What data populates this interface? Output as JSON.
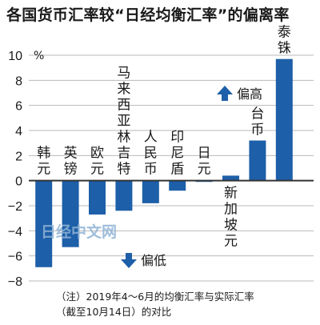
{
  "title": "各国货币汇率较“日经均衡汇率”的偏离率",
  "footnote": [
    "（注）2019年4～6月的均衡汇率与实际汇率",
    "（截至10月14日）的对比"
  ],
  "watermark": "日经中文网",
  "colors": {
    "bar": "#1d5fa8",
    "grid": "#b9b9b9",
    "axis": "#333333",
    "watermark": "#8fb3d6"
  },
  "chart_data": {
    "type": "bar",
    "title": "各国货币汇率较“日经均衡汇率”的偏离率",
    "unit": "%",
    "ylim": [
      -8,
      10
    ],
    "yticks": [
      10,
      8,
      6,
      4,
      2,
      0,
      -2,
      -4,
      -6,
      -8
    ],
    "grid": true,
    "categories": [
      "韩元",
      "英镑",
      "欧元",
      "马来西亚林吉特",
      "人民币",
      "印尼盾",
      "日元",
      "新加坡元",
      "台币",
      "泰铢"
    ],
    "values": [
      -6.9,
      -5.3,
      -2.7,
      -2.4,
      -1.8,
      -0.8,
      -0.1,
      0.4,
      3.2,
      9.7
    ],
    "annotations": [
      {
        "text": "偏高",
        "arrow": "up"
      },
      {
        "text": "偏低",
        "arrow": "down"
      }
    ]
  }
}
